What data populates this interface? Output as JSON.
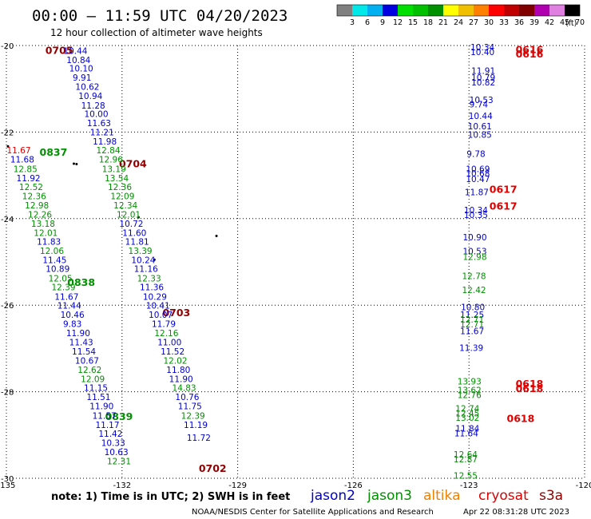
{
  "header": {
    "title": "00:00 – 11:59 UTC 04/20/2023",
    "subtitle": "12 hour collection of altimeter wave heights"
  },
  "colorbar": {
    "colors": [
      "#808080",
      "#00e8e8",
      "#00b0f0",
      "#0000e0",
      "#00e000",
      "#00c000",
      "#009000",
      "#ffff00",
      "#f0c000",
      "#ff8000",
      "#ff0000",
      "#c00000",
      "#800000",
      "#b000b0",
      "#e080e0",
      "#000000"
    ],
    "ticks": [
      "3",
      "6",
      "9",
      "12",
      "15",
      "18",
      "21",
      "24",
      "27",
      "30",
      "33",
      "36",
      "39",
      "42",
      "45",
      "70"
    ],
    "unit": "(ft)"
  },
  "satellites": {
    "jason2": {
      "name": "jason2",
      "color": "#0000d0"
    },
    "jason3": {
      "name": "jason3",
      "color": "#009000"
    },
    "altika": {
      "name": "altika",
      "color": "#f08000"
    },
    "cryosat": {
      "name": "cryosat",
      "color": "#e00000"
    },
    "s3a": {
      "name": "s3a",
      "color": "#900000"
    }
  },
  "footer": {
    "note": "note: 1) Time is in UTC; 2) SWH is in feet",
    "credit": "NOAA/NESDIS Center for Satellite Applications and Research",
    "timestamp": "Apr 22 08:31:28 UTC 2023"
  },
  "chart_data": {
    "type": "scatter",
    "x_ticks": [
      "-135",
      "-132",
      "-129",
      "-126",
      "-123",
      "-120"
    ],
    "y_ticks": [
      "-20",
      "-22",
      "-24",
      "-26",
      "-28",
      "-30"
    ],
    "xlim": [
      -135,
      -120
    ],
    "ylim": [
      -30,
      -20
    ],
    "grid": true,
    "marks": [
      {
        "lon": -133.99,
        "lat": -20.12,
        "text": "0705",
        "kind": "time",
        "sat": "s3a"
      },
      {
        "lon": -132.08,
        "lat": -22.74,
        "text": "0704",
        "kind": "time",
        "sat": "s3a"
      },
      {
        "lon": -130.95,
        "lat": -26.18,
        "text": "0703",
        "kind": "time",
        "sat": "s3a"
      },
      {
        "lon": -130.01,
        "lat": -29.78,
        "text": "0702",
        "kind": "time",
        "sat": "s3a"
      },
      {
        "lon": -134.14,
        "lat": -22.47,
        "text": "0837",
        "kind": "time",
        "sat": "jason3"
      },
      {
        "lon": -133.42,
        "lat": -25.48,
        "text": "0838",
        "kind": "time",
        "sat": "jason3"
      },
      {
        "lon": -132.44,
        "lat": -28.58,
        "text": "0839",
        "kind": "time",
        "sat": "jason3"
      },
      {
        "lon": -121.79,
        "lat": -20.1,
        "text": "0616",
        "kind": "time",
        "sat": "cryosat"
      },
      {
        "lon": -121.79,
        "lat": -20.2,
        "text": "0616",
        "kind": "time",
        "sat": "cryosat"
      },
      {
        "lon": -122.47,
        "lat": -23.33,
        "text": "0617",
        "kind": "time",
        "sat": "cryosat"
      },
      {
        "lon": -122.47,
        "lat": -23.72,
        "text": "0617",
        "kind": "time",
        "sat": "cryosat"
      },
      {
        "lon": -121.79,
        "lat": -27.82,
        "text": "0618",
        "kind": "time",
        "sat": "cryosat"
      },
      {
        "lon": -121.79,
        "lat": -27.93,
        "text": "0618",
        "kind": "time",
        "sat": "cryosat"
      },
      {
        "lon": -122.02,
        "lat": -28.63,
        "text": "0618",
        "kind": "time",
        "sat": "cryosat"
      },
      {
        "lon": -133.52,
        "lat": -20.12,
        "text": "10.44",
        "sat": "jason2"
      },
      {
        "lon": -133.44,
        "lat": -20.33,
        "text": "10.84",
        "sat": "jason2"
      },
      {
        "lon": -133.37,
        "lat": -20.53,
        "text": "10.10",
        "sat": "jason2"
      },
      {
        "lon": -133.28,
        "lat": -20.74,
        "text": "9.91",
        "sat": "jason2"
      },
      {
        "lon": -133.21,
        "lat": -20.95,
        "text": "10.62",
        "sat": "jason2"
      },
      {
        "lon": -133.13,
        "lat": -21.16,
        "text": "10.94",
        "sat": "jason2"
      },
      {
        "lon": -133.06,
        "lat": -21.38,
        "text": "11.28",
        "sat": "jason2"
      },
      {
        "lon": -132.98,
        "lat": -21.58,
        "text": "10.00",
        "sat": "jason2"
      },
      {
        "lon": -132.91,
        "lat": -21.79,
        "text": "11.63",
        "sat": "jason2"
      },
      {
        "lon": -132.83,
        "lat": -22.0,
        "text": "11.21",
        "sat": "jason2"
      },
      {
        "lon": -132.76,
        "lat": -22.21,
        "text": "11.98",
        "sat": "jason2"
      },
      {
        "lon": -132.67,
        "lat": -22.42,
        "text": "12.84",
        "sat": "jason3"
      },
      {
        "lon": -132.6,
        "lat": -22.63,
        "text": "12.96",
        "sat": "jason3"
      },
      {
        "lon": -132.52,
        "lat": -22.85,
        "text": "13.19",
        "sat": "jason3"
      },
      {
        "lon": -132.45,
        "lat": -23.06,
        "text": "13.54",
        "sat": "jason3"
      },
      {
        "lon": -132.37,
        "lat": -23.27,
        "text": "12.36",
        "sat": "jason3"
      },
      {
        "lon": -132.3,
        "lat": -23.48,
        "text": "12.09",
        "sat": "jason3"
      },
      {
        "lon": -132.22,
        "lat": -23.69,
        "text": "12.34",
        "sat": "jason3"
      },
      {
        "lon": -132.14,
        "lat": -23.9,
        "text": "12.01",
        "sat": "jason3"
      },
      {
        "lon": -132.07,
        "lat": -24.11,
        "text": "10.72",
        "sat": "jason2"
      },
      {
        "lon": -131.99,
        "lat": -24.33,
        "text": "11.60",
        "sat": "jason2"
      },
      {
        "lon": -131.92,
        "lat": -24.53,
        "text": "11.81",
        "sat": "jason2"
      },
      {
        "lon": -131.84,
        "lat": -24.74,
        "text": "13.39",
        "sat": "jason3"
      },
      {
        "lon": -131.76,
        "lat": -24.95,
        "text": "10.24",
        "sat": "jason2"
      },
      {
        "lon": -131.69,
        "lat": -25.16,
        "text": "11.16",
        "sat": "jason2"
      },
      {
        "lon": -131.61,
        "lat": -25.38,
        "text": "12.33",
        "sat": "jason3"
      },
      {
        "lon": -131.54,
        "lat": -25.58,
        "text": "11.36",
        "sat": "jason2"
      },
      {
        "lon": -131.46,
        "lat": -25.8,
        "text": "10.29",
        "sat": "jason2"
      },
      {
        "lon": -131.38,
        "lat": -26.01,
        "text": "10.41",
        "sat": "jason2"
      },
      {
        "lon": -131.31,
        "lat": -26.22,
        "text": "10.07",
        "sat": "jason2"
      },
      {
        "lon": -131.23,
        "lat": -26.43,
        "text": "11.79",
        "sat": "jason2"
      },
      {
        "lon": -131.16,
        "lat": -26.64,
        "text": "12.16",
        "sat": "jason3"
      },
      {
        "lon": -131.08,
        "lat": -26.85,
        "text": "11.00",
        "sat": "jason2"
      },
      {
        "lon": -131.0,
        "lat": -27.07,
        "text": "11.52",
        "sat": "jason2"
      },
      {
        "lon": -130.93,
        "lat": -27.28,
        "text": "12.02",
        "sat": "jason3"
      },
      {
        "lon": -130.85,
        "lat": -27.49,
        "text": "11.80",
        "sat": "jason2"
      },
      {
        "lon": -130.78,
        "lat": -27.7,
        "text": "11.90",
        "sat": "jason2"
      },
      {
        "lon": -130.7,
        "lat": -27.91,
        "text": "14.83",
        "sat": "jason3"
      },
      {
        "lon": -130.62,
        "lat": -28.12,
        "text": "10.76",
        "sat": "jason2"
      },
      {
        "lon": -130.55,
        "lat": -28.33,
        "text": "11.75",
        "sat": "jason2"
      },
      {
        "lon": -130.47,
        "lat": -28.55,
        "text": "12.39",
        "sat": "jason3"
      },
      {
        "lon": -130.4,
        "lat": -28.76,
        "text": "11.19",
        "sat": "jason2"
      },
      {
        "lon": -130.32,
        "lat": -29.06,
        "text": "11.72",
        "sat": "jason2"
      },
      {
        "lon": -134.99,
        "lat": -22.42,
        "text": "11.67",
        "sat": "cryosat"
      },
      {
        "lon": -134.9,
        "lat": -22.63,
        "text": "11.68",
        "sat": "jason2"
      },
      {
        "lon": -134.82,
        "lat": -22.85,
        "text": "12.85",
        "sat": "jason3"
      },
      {
        "lon": -134.74,
        "lat": -23.06,
        "text": "11.92",
        "sat": "jason2"
      },
      {
        "lon": -134.67,
        "lat": -23.27,
        "text": "12.52",
        "sat": "jason3"
      },
      {
        "lon": -134.59,
        "lat": -23.48,
        "text": "12.36",
        "sat": "jason3"
      },
      {
        "lon": -134.52,
        "lat": -23.69,
        "text": "12.98",
        "sat": "jason3"
      },
      {
        "lon": -134.44,
        "lat": -23.9,
        "text": "12.26",
        "sat": "jason3"
      },
      {
        "lon": -134.36,
        "lat": -24.11,
        "text": "13.18",
        "sat": "jason3"
      },
      {
        "lon": -134.29,
        "lat": -24.33,
        "text": "12.01",
        "sat": "jason3"
      },
      {
        "lon": -134.21,
        "lat": -24.53,
        "text": "11.83",
        "sat": "jason2"
      },
      {
        "lon": -134.13,
        "lat": -24.74,
        "text": "12.06",
        "sat": "jason3"
      },
      {
        "lon": -134.06,
        "lat": -24.95,
        "text": "11.45",
        "sat": "jason2"
      },
      {
        "lon": -133.98,
        "lat": -25.16,
        "text": "10.89",
        "sat": "jason2"
      },
      {
        "lon": -133.91,
        "lat": -25.38,
        "text": "12.05",
        "sat": "jason3"
      },
      {
        "lon": -133.83,
        "lat": -25.58,
        "text": "12.39",
        "sat": "jason3"
      },
      {
        "lon": -133.75,
        "lat": -25.8,
        "text": "11.67",
        "sat": "jason2"
      },
      {
        "lon": -133.68,
        "lat": -26.01,
        "text": "11.44",
        "sat": "jason2"
      },
      {
        "lon": -133.6,
        "lat": -26.22,
        "text": "10.46",
        "sat": "jason2"
      },
      {
        "lon": -133.53,
        "lat": -26.43,
        "text": "9.83",
        "sat": "jason2"
      },
      {
        "lon": -133.45,
        "lat": -26.64,
        "text": "11.90",
        "sat": "jason2"
      },
      {
        "lon": -133.37,
        "lat": -26.85,
        "text": "11.43",
        "sat": "jason2"
      },
      {
        "lon": -133.3,
        "lat": -27.07,
        "text": "11.54",
        "sat": "jason2"
      },
      {
        "lon": -133.22,
        "lat": -27.28,
        "text": "10.67",
        "sat": "jason2"
      },
      {
        "lon": -133.15,
        "lat": -27.49,
        "text": "12.62",
        "sat": "jason3"
      },
      {
        "lon": -133.07,
        "lat": -27.7,
        "text": "12.09",
        "sat": "jason3"
      },
      {
        "lon": -132.99,
        "lat": -27.91,
        "text": "11.15",
        "sat": "jason2"
      },
      {
        "lon": -132.92,
        "lat": -28.12,
        "text": "11.51",
        "sat": "jason2"
      },
      {
        "lon": -132.84,
        "lat": -28.33,
        "text": "11.90",
        "sat": "jason2"
      },
      {
        "lon": -132.77,
        "lat": -28.55,
        "text": "11.57",
        "sat": "jason2"
      },
      {
        "lon": -132.69,
        "lat": -28.76,
        "text": "11.17",
        "sat": "jason2"
      },
      {
        "lon": -132.61,
        "lat": -28.97,
        "text": "11.42",
        "sat": "jason2"
      },
      {
        "lon": -132.54,
        "lat": -29.18,
        "text": "10.33",
        "sat": "jason2"
      },
      {
        "lon": -132.46,
        "lat": -29.39,
        "text": "10.63",
        "sat": "jason2"
      },
      {
        "lon": -132.39,
        "lat": -29.6,
        "text": "12.31",
        "sat": "jason3"
      },
      {
        "lon": -122.96,
        "lat": -20.04,
        "text": "10.34",
        "sat": "jason2"
      },
      {
        "lon": -122.96,
        "lat": -20.15,
        "text": "10.40",
        "sat": "jason2"
      },
      {
        "lon": -122.94,
        "lat": -20.58,
        "text": "11.91",
        "sat": "jason2"
      },
      {
        "lon": -122.94,
        "lat": -20.74,
        "text": "10.79",
        "sat": "jason2"
      },
      {
        "lon": -122.94,
        "lat": -20.85,
        "text": "10.82",
        "sat": "jason2"
      },
      {
        "lon": -122.99,
        "lat": -21.25,
        "text": "10.53",
        "sat": "jason2"
      },
      {
        "lon": -122.99,
        "lat": -21.36,
        "text": "9.74",
        "sat": "jason2"
      },
      {
        "lon": -123.01,
        "lat": -21.62,
        "text": "10.44",
        "sat": "jason2"
      },
      {
        "lon": -123.03,
        "lat": -21.86,
        "text": "10.61",
        "sat": "jason2"
      },
      {
        "lon": -123.03,
        "lat": -22.06,
        "text": "10.85",
        "sat": "jason2"
      },
      {
        "lon": -123.06,
        "lat": -22.5,
        "text": "9.78",
        "sat": "jason2"
      },
      {
        "lon": -123.08,
        "lat": -22.85,
        "text": "10.69",
        "sat": "jason2"
      },
      {
        "lon": -123.08,
        "lat": -22.95,
        "text": "10.68",
        "sat": "jason2"
      },
      {
        "lon": -123.08,
        "lat": -23.08,
        "text": "10.47",
        "sat": "jason2"
      },
      {
        "lon": -123.11,
        "lat": -23.39,
        "text": "11.87",
        "sat": "jason2"
      },
      {
        "lon": -123.13,
        "lat": -23.8,
        "text": "10.34",
        "sat": "jason2"
      },
      {
        "lon": -123.13,
        "lat": -23.91,
        "text": "10.35",
        "sat": "jason2"
      },
      {
        "lon": -123.16,
        "lat": -24.43,
        "text": "10.90",
        "sat": "jason2"
      },
      {
        "lon": -123.16,
        "lat": -24.75,
        "text": "10.53",
        "sat": "jason2"
      },
      {
        "lon": -123.16,
        "lat": -24.88,
        "text": "12.98",
        "sat": "jason3"
      },
      {
        "lon": -123.18,
        "lat": -25.32,
        "text": "12.78",
        "sat": "jason3"
      },
      {
        "lon": -123.18,
        "lat": -25.65,
        "text": "12.42",
        "sat": "jason3"
      },
      {
        "lon": -123.21,
        "lat": -26.04,
        "text": "10.80",
        "sat": "jason2"
      },
      {
        "lon": -123.23,
        "lat": -26.22,
        "text": "11.25",
        "sat": "jason2"
      },
      {
        "lon": -123.23,
        "lat": -26.33,
        "text": "12.71",
        "sat": "jason3"
      },
      {
        "lon": -123.23,
        "lat": -26.44,
        "text": "12.71",
        "sat": "jason3"
      },
      {
        "lon": -123.23,
        "lat": -26.6,
        "text": "11.67",
        "sat": "jason2"
      },
      {
        "lon": -123.25,
        "lat": -26.98,
        "text": "11.39",
        "sat": "jason2"
      },
      {
        "lon": -123.3,
        "lat": -27.76,
        "text": "13.93",
        "sat": "jason3"
      },
      {
        "lon": -123.3,
        "lat": -27.96,
        "text": "13.62",
        "sat": "jason3"
      },
      {
        "lon": -123.3,
        "lat": -28.07,
        "text": "12.76",
        "sat": "jason3"
      },
      {
        "lon": -123.35,
        "lat": -28.39,
        "text": "12.74",
        "sat": "jason3"
      },
      {
        "lon": -123.35,
        "lat": -28.5,
        "text": "12.45",
        "sat": "jason3"
      },
      {
        "lon": -123.35,
        "lat": -28.6,
        "text": "13.02",
        "sat": "jason3"
      },
      {
        "lon": -123.35,
        "lat": -28.85,
        "text": "11.84",
        "sat": "jason2"
      },
      {
        "lon": -123.38,
        "lat": -28.96,
        "text": "11.64",
        "sat": "jason2"
      },
      {
        "lon": -123.4,
        "lat": -29.45,
        "text": "12.64",
        "sat": "jason3"
      },
      {
        "lon": -123.4,
        "lat": -29.56,
        "text": "12.87",
        "sat": "jason3"
      },
      {
        "lon": -123.4,
        "lat": -29.94,
        "text": "12.55",
        "sat": "jason3"
      }
    ],
    "islands": [
      {
        "lon": -133.25,
        "lat": -22.73
      },
      {
        "lon": -133.18,
        "lat": -22.74
      },
      {
        "lon": -131.57,
        "lat": -23.97
      },
      {
        "lon": -129.55,
        "lat": -24.4
      },
      {
        "lon": -131.16,
        "lat": -24.95
      },
      {
        "lon": -134.96,
        "lat": -22.33
      }
    ]
  }
}
